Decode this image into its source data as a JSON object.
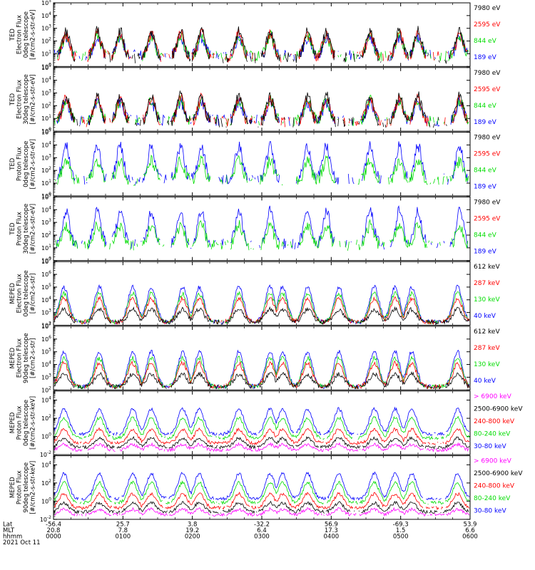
{
  "chart_data": {
    "type": "line",
    "x_ticks": [
      "0000",
      "0100",
      "0200",
      "0300",
      "0400",
      "0500",
      "0600"
    ],
    "footer": {
      "rows": [
        {
          "label": "Lat",
          "values": [
            "-56.4",
            "25.7",
            "3.8",
            "-32.2",
            "56.9",
            "-69.3",
            "53.9"
          ]
        },
        {
          "label": "MLT",
          "values": [
            "20.8",
            "7.8",
            "19.2",
            "6.4",
            "17.3",
            "1.5",
            "6.6"
          ]
        },
        {
          "label": "hhmm",
          "values": [
            "0000",
            "0100",
            "0200",
            "0300",
            "0400",
            "0500",
            "0600"
          ]
        }
      ],
      "date": "2021 Oct 11"
    },
    "panels": [
      {
        "ylabel": [
          "TED",
          "Electron Flux",
          "0deg telescope",
          "[#/cm2-s-str-eV]"
        ],
        "ylim_exp": [
          0,
          5
        ],
        "tick_exps": [
          0,
          1,
          2,
          3,
          4,
          5
        ],
        "series": [
          {
            "name": "7980 eV",
            "color": "#000000"
          },
          {
            "name": "2595 eV",
            "color": "#ff0000"
          },
          {
            "name": "844 eV",
            "color": "#00dd00"
          },
          {
            "name": "189 eV",
            "color": "#0000ff"
          }
        ]
      },
      {
        "ylabel": [
          "TED",
          "Electron Flux",
          "30deg telescope",
          "[#/cm2-s-str-eV]"
        ],
        "ylim_exp": [
          0,
          5
        ],
        "tick_exps": [
          0,
          1,
          2,
          3,
          4,
          5
        ],
        "series": [
          {
            "name": "7980 eV",
            "color": "#000000"
          },
          {
            "name": "2595 eV",
            "color": "#ff0000"
          },
          {
            "name": "844 eV",
            "color": "#00dd00"
          },
          {
            "name": "189 eV",
            "color": "#0000ff"
          }
        ]
      },
      {
        "ylabel": [
          "TED",
          "Proton Flux",
          "0deg telescope",
          "[#/cm2-s-str-eV]"
        ],
        "ylim_exp": [
          0,
          5
        ],
        "tick_exps": [
          0,
          1,
          2,
          3,
          4,
          5
        ],
        "series": [
          {
            "name": "7980 eV",
            "color": "#000000"
          },
          {
            "name": "2595 eV",
            "color": "#ff0000"
          },
          {
            "name": "844 eV",
            "color": "#00dd00"
          },
          {
            "name": "189 eV",
            "color": "#0000ff"
          }
        ]
      },
      {
        "ylabel": [
          "TED",
          "Proton Flux",
          "30deg telescope",
          "[#/cm2-s-str-eV]"
        ],
        "ylim_exp": [
          0,
          5
        ],
        "tick_exps": [
          0,
          1,
          2,
          3,
          4,
          5
        ],
        "series": [
          {
            "name": "7980 eV",
            "color": "#000000"
          },
          {
            "name": "2595 eV",
            "color": "#ff0000"
          },
          {
            "name": "844 eV",
            "color": "#00dd00"
          },
          {
            "name": "189 eV",
            "color": "#0000ff"
          }
        ]
      },
      {
        "ylabel": [
          "MEPED",
          "Electron Flux",
          "0deg telescope",
          "[#/cm2-s-str]"
        ],
        "ylim_exp": [
          2,
          7
        ],
        "tick_exps": [
          2,
          3,
          4,
          5,
          6,
          7
        ],
        "series": [
          {
            "name": "612 keV",
            "color": "#000000"
          },
          {
            "name": "287 keV",
            "color": "#ff0000"
          },
          {
            "name": "130 keV",
            "color": "#00dd00"
          },
          {
            "name": "40 keV",
            "color": "#0000ff"
          }
        ]
      },
      {
        "ylabel": [
          "MEPED",
          "Electron Flux",
          "90deg telescope",
          "[#/cm2-s-str]"
        ],
        "ylim_exp": [
          2,
          7
        ],
        "tick_exps": [
          2,
          3,
          4,
          5,
          6,
          7
        ],
        "series": [
          {
            "name": "612 keV",
            "color": "#000000"
          },
          {
            "name": "287 keV",
            "color": "#ff0000"
          },
          {
            "name": "130 keV",
            "color": "#00dd00"
          },
          {
            "name": "40 keV",
            "color": "#0000ff"
          }
        ]
      },
      {
        "ylabel": [
          "MEPED",
          "Proton Flux",
          "0deg telescope",
          "[#/cm2-s-str-keV]"
        ],
        "ylim_exp": [
          -2,
          5
        ],
        "tick_exps": [
          -2,
          0,
          2,
          4
        ],
        "series": [
          {
            "name": "> 6900 keV",
            "color": "#ff00ff"
          },
          {
            "name": "2500-6900 keV",
            "color": "#000000"
          },
          {
            "name": "240-800 keV",
            "color": "#ff0000"
          },
          {
            "name": "80-240 keV",
            "color": "#00dd00"
          },
          {
            "name": "30-80 keV",
            "color": "#0000ff"
          }
        ]
      },
      {
        "ylabel": [
          "MEPED",
          "Proton Flux",
          "90deg telescope",
          "[#/cm2-s-str-keV]"
        ],
        "ylim_exp": [
          -2,
          5
        ],
        "tick_exps": [
          -2,
          0,
          2,
          4
        ],
        "series": [
          {
            "name": "> 6900 keV",
            "color": "#ff00ff"
          },
          {
            "name": "2500-6900 keV",
            "color": "#000000"
          },
          {
            "name": "240-800 keV",
            "color": "#ff0000"
          },
          {
            "name": "80-240 keV",
            "color": "#00dd00"
          },
          {
            "name": "30-80 keV",
            "color": "#0000ff"
          }
        ]
      }
    ]
  }
}
